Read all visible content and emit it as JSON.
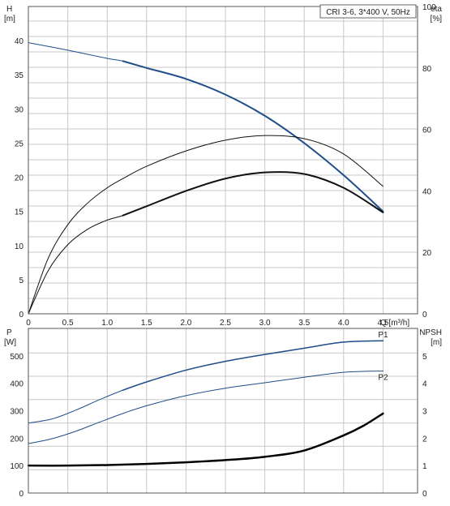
{
  "chart_data": [
    {
      "type": "line",
      "title": "CRI 3-6, 3*400 V, 50Hz",
      "xlabel": "Q [m³/h]",
      "x_ticks": [
        "0",
        "0.5",
        "1.0",
        "1.5",
        "2.0",
        "2.5",
        "3.0",
        "3.5",
        "4.0",
        "4.5"
      ],
      "xlim": [
        0,
        4.5
      ],
      "left_axis": {
        "label_top": "H",
        "label_unit": "[m]",
        "ylim": [
          0,
          45
        ],
        "ticks": [
          "0",
          "5",
          "10",
          "15",
          "20",
          "25",
          "30",
          "35",
          "40"
        ]
      },
      "right_axis": {
        "label_top": "eta",
        "label_unit": "[%]",
        "ylim": [
          0,
          100
        ],
        "ticks": [
          "0",
          "20",
          "40",
          "60",
          "80",
          "100"
        ]
      },
      "grid": true,
      "series": [
        {
          "axis": "left",
          "color": "#1f4e89",
          "width": 2,
          "x": [
            0,
            0.5,
            1.0,
            1.2,
            1.5,
            2.0,
            2.5,
            3.0,
            3.5,
            4.0,
            4.5
          ],
          "values": [
            39.7,
            38.6,
            37.4,
            37.0,
            36.0,
            34.4,
            32.1,
            29.0,
            25.0,
            20.3,
            15.0
          ],
          "bold_from": 1.2
        },
        {
          "axis": "right",
          "color": "#111111",
          "width": 1,
          "x": [
            0,
            0.25,
            0.5,
            0.75,
            1.0,
            1.2,
            1.5,
            2.0,
            2.5,
            3.0,
            3.5,
            4.0,
            4.5
          ],
          "values": [
            0,
            18,
            29,
            36,
            41,
            44,
            48,
            53,
            56.5,
            58,
            57,
            52,
            41.5
          ]
        },
        {
          "axis": "right",
          "color": "#111111",
          "width": 2,
          "x": [
            0,
            0.25,
            0.5,
            0.75,
            1.0,
            1.2,
            1.5,
            2.0,
            2.5,
            3.0,
            3.5,
            4.0,
            4.5
          ],
          "values": [
            0,
            14,
            22.5,
            27.5,
            30.5,
            32,
            35,
            40,
            44,
            46,
            45.5,
            41,
            33
          ],
          "bold_from": 1.2
        }
      ]
    },
    {
      "type": "line",
      "xlim": [
        0,
        4.5
      ],
      "left_axis": {
        "label_top": "P",
        "label_unit": "[W]",
        "ylim": [
          0,
          600
        ],
        "ticks": [
          "0",
          "100",
          "200",
          "300",
          "400",
          "500"
        ]
      },
      "right_axis": {
        "label_top": "NPSH",
        "label_unit": "[m]",
        "ylim": [
          0,
          6
        ],
        "ticks": [
          "0",
          "1",
          "2",
          "3",
          "4",
          "5"
        ]
      },
      "grid": true,
      "series": [
        {
          "name": "P1",
          "axis": "left",
          "color": "#1f4e89",
          "width": 1.5,
          "x": [
            0,
            0.3,
            0.6,
            0.9,
            1.2,
            1.5,
            2.0,
            2.5,
            3.0,
            3.5,
            4.0,
            4.5
          ],
          "values": [
            255,
            270,
            302,
            340,
            375,
            405,
            448,
            480,
            505,
            528,
            550,
            555
          ],
          "bold_from": 1.2
        },
        {
          "name": "P2",
          "axis": "left",
          "color": "#1f4e89",
          "width": 1,
          "x": [
            0,
            0.3,
            0.6,
            0.9,
            1.2,
            1.5,
            2.0,
            2.5,
            3.0,
            3.5,
            4.0,
            4.5
          ],
          "values": [
            180,
            198,
            225,
            258,
            290,
            318,
            355,
            382,
            402,
            422,
            440,
            445
          ]
        },
        {
          "axis": "right",
          "color": "#000000",
          "width": 2.5,
          "x": [
            0,
            0.5,
            1.0,
            1.5,
            2.0,
            2.5,
            3.0,
            3.5,
            4.0,
            4.25,
            4.5
          ],
          "values": [
            1.0,
            1.0,
            1.02,
            1.06,
            1.12,
            1.2,
            1.32,
            1.55,
            2.1,
            2.45,
            2.9
          ]
        }
      ]
    }
  ]
}
